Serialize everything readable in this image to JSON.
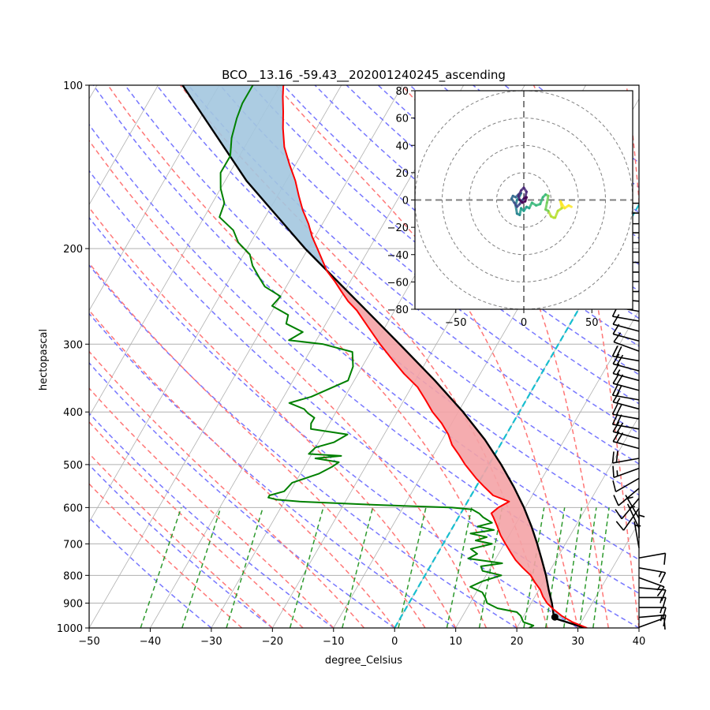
{
  "chart_data": [
    {
      "type": "line",
      "subtype": "skew-t",
      "title": "BCO__13.16_-59.43__202001240245_ascending",
      "xlabel": "degree_Celsius",
      "ylabel": "hectopascal",
      "xlim": [
        -50,
        40
      ],
      "ylim": [
        1000,
        100
      ],
      "yscale": "log",
      "xticks": [
        -50,
        -40,
        -30,
        -20,
        -10,
        0,
        10,
        20,
        30,
        40
      ],
      "xtick_labels": [
        "−50",
        "−40",
        "−30",
        "−20",
        "−10",
        "0",
        "10",
        "20",
        "30",
        "40"
      ],
      "yticks": [
        100,
        200,
        300,
        400,
        500,
        600,
        700,
        800,
        900,
        1000
      ],
      "ytick_labels": [
        "100",
        "200",
        "300",
        "400",
        "500",
        "600",
        "700",
        "800",
        "900",
        "1000"
      ],
      "grid": true,
      "skew_degrees": 30,
      "colors": {
        "temperature": "#ff0000",
        "dewpoint": "#008000",
        "parcel": "#000000",
        "cape": "#f4a3a6",
        "cin": "#a3c6df",
        "dry_adiabat": "#7777ff",
        "moist_adiabat": "#ff7777",
        "mixing_ratio": "#2e9a2e",
        "zero_isotherm": "#17becf",
        "isotherm": "#b0b0b0"
      },
      "series": [
        {
          "name": "temperature",
          "points": [
            [
              1000,
              31.5
            ],
            [
              975,
              28.5
            ],
            [
              950,
              26.2
            ],
            [
              925,
              24.3
            ],
            [
              900,
              22.6
            ],
            [
              875,
              21.3
            ],
            [
              850,
              20.2
            ],
            [
              825,
              18.7
            ],
            [
              800,
              17.3
            ],
            [
              775,
              15.3
            ],
            [
              750,
              13.4
            ],
            [
              725,
              11.8
            ],
            [
              700,
              10.2
            ],
            [
              675,
              8.6
            ],
            [
              650,
              7.2
            ],
            [
              625,
              5.7
            ],
            [
              615,
              5.0
            ],
            [
              600,
              5.6
            ],
            [
              585,
              6.8
            ],
            [
              570,
              3.6
            ],
            [
              550,
              1.4
            ],
            [
              530,
              -0.8
            ],
            [
              500,
              -3.9
            ],
            [
              480,
              -5.8
            ],
            [
              460,
              -7.9
            ],
            [
              440,
              -9.5
            ],
            [
              420,
              -11.6
            ],
            [
              400,
              -14.2
            ],
            [
              380,
              -16.5
            ],
            [
              360,
              -19.0
            ],
            [
              340,
              -22.5
            ],
            [
              320,
              -25.8
            ],
            [
              300,
              -29.2
            ],
            [
              280,
              -32.6
            ],
            [
              260,
              -36.2
            ],
            [
              250,
              -38.5
            ],
            [
              240,
              -40.5
            ],
            [
              230,
              -42.5
            ],
            [
              220,
              -44.8
            ],
            [
              200,
              -48.5
            ],
            [
              190,
              -50.5
            ],
            [
              180,
              -52.3
            ],
            [
              170,
              -54.5
            ],
            [
              160,
              -56.5
            ],
            [
              150,
              -58.5
            ],
            [
              140,
              -61.0
            ],
            [
              130,
              -63.5
            ],
            [
              120,
              -65.5
            ],
            [
              112,
              -67.0
            ],
            [
              105,
              -68.5
            ],
            [
              100,
              -69.5
            ]
          ]
        },
        {
          "name": "dewpoint",
          "points": [
            [
              1000,
              22.0
            ],
            [
              990,
              22.5
            ],
            [
              975,
              20.5
            ],
            [
              950,
              19.5
            ],
            [
              935,
              18.5
            ],
            [
              920,
              15.0
            ],
            [
              900,
              12.8
            ],
            [
              880,
              12.0
            ],
            [
              860,
              11.0
            ],
            [
              840,
              8.5
            ],
            [
              820,
              10.0
            ],
            [
              800,
              12.5
            ],
            [
              785,
              9.0
            ],
            [
              770,
              8.3
            ],
            [
              760,
              11.5
            ],
            [
              745,
              5.5
            ],
            [
              730,
              6.5
            ],
            [
              715,
              5.0
            ],
            [
              700,
              8.0
            ],
            [
              690,
              5.0
            ],
            [
              680,
              6.5
            ],
            [
              670,
              3.5
            ],
            [
              660,
              7.0
            ],
            [
              650,
              4.0
            ],
            [
              640,
              6.0
            ],
            [
              625,
              4.0
            ],
            [
              615,
              3.0
            ],
            [
              605,
              1.5
            ],
            [
              600,
              -2.0
            ],
            [
              593,
              -15.0
            ],
            [
              585,
              -27.5
            ],
            [
              580,
              -31.5
            ],
            [
              575,
              -33.0
            ],
            [
              570,
              -33.0
            ],
            [
              560,
              -31.0
            ],
            [
              540,
              -30.5
            ],
            [
              520,
              -27.0
            ],
            [
              505,
              -25.5
            ],
            [
              495,
              -24.8
            ],
            [
              487,
              -29.0
            ],
            [
              482,
              -25.0
            ],
            [
              478,
              -30.5
            ],
            [
              465,
              -30.0
            ],
            [
              455,
              -27.5
            ],
            [
              440,
              -26.0
            ],
            [
              430,
              -32.5
            ],
            [
              420,
              -33.0
            ],
            [
              410,
              -33.0
            ],
            [
              402,
              -34.5
            ],
            [
              395,
              -35.5
            ],
            [
              385,
              -38.5
            ],
            [
              375,
              -35.5
            ],
            [
              350,
              -31.0
            ],
            [
              330,
              -31.5
            ],
            [
              310,
              -33.0
            ],
            [
              300,
              -38.5
            ],
            [
              295,
              -44.5
            ],
            [
              285,
              -43.0
            ],
            [
              275,
              -46.5
            ],
            [
              265,
              -47.0
            ],
            [
              255,
              -50.5
            ],
            [
              245,
              -50.0
            ],
            [
              235,
              -53.5
            ],
            [
              225,
              -55.5
            ],
            [
              215,
              -57.5
            ],
            [
              205,
              -59.0
            ],
            [
              195,
              -62.0
            ],
            [
              185,
              -64.0
            ],
            [
              175,
              -67.5
            ],
            [
              165,
              -68.0
            ],
            [
              155,
              -70.0
            ],
            [
              145,
              -71.5
            ],
            [
              135,
              -71.5
            ],
            [
              125,
              -73.0
            ],
            [
              115,
              -74.0
            ],
            [
              108,
              -74.5
            ],
            [
              100,
              -74.5
            ]
          ]
        },
        {
          "name": "parcel",
          "points": [
            [
              1000,
              31.2
            ],
            [
              960,
              25.3
            ],
            [
              950,
              24.9
            ],
            [
              900,
              23.4
            ],
            [
              850,
              21.6
            ],
            [
              800,
              19.8
            ],
            [
              750,
              17.7
            ],
            [
              700,
              15.4
            ],
            [
              650,
              12.8
            ],
            [
              600,
              9.8
            ],
            [
              550,
              6.2
            ],
            [
              500,
              2.0
            ],
            [
              450,
              -3.0
            ],
            [
              400,
              -9.2
            ],
            [
              350,
              -16.8
            ],
            [
              300,
              -26.0
            ],
            [
              250,
              -37.0
            ],
            [
              200,
              -50.5
            ],
            [
              150,
              -66.5
            ],
            [
              100,
              -86.0
            ]
          ]
        }
      ],
      "surface_marker": {
        "pressure": 955,
        "temperature": 25.2
      },
      "hodograph": {
        "type": "line",
        "xlim": [
          -80,
          80
        ],
        "ylim": [
          -80,
          80
        ],
        "xticks": [
          -50,
          0,
          50
        ],
        "xtick_labels": [
          "−50",
          "0",
          "50"
        ],
        "yticks": [
          -80,
          -60,
          -40,
          -20,
          0,
          20,
          40,
          60,
          80
        ],
        "ytick_labels": [
          "−80",
          "−60",
          "−40",
          "−20",
          "0",
          "20",
          "40",
          "60",
          "80"
        ],
        "rings": [
          20,
          40,
          60,
          80
        ],
        "colormap": "viridis",
        "u": [
          35,
          33,
          30,
          28,
          27,
          28,
          25,
          23,
          22,
          20,
          18,
          16,
          17,
          18,
          16,
          14,
          12,
          9,
          6,
          4,
          2,
          0,
          -2,
          -3,
          -5,
          -6,
          -5,
          -3,
          -2,
          -4,
          -6,
          -8,
          -9,
          -7,
          -5,
          -3,
          -1,
          1,
          2,
          0,
          -2,
          -4,
          -3,
          -1,
          1,
          2,
          0
        ],
        "v": [
          -5,
          -4,
          -6,
          -3,
          -1,
          -6,
          -8,
          -13,
          -13,
          -12,
          -8,
          -7,
          -2,
          3,
          4,
          2,
          -3,
          -4,
          -2,
          -6,
          -5,
          -8,
          -6,
          -11,
          -10,
          -4,
          0,
          3,
          5,
          4,
          2,
          3,
          1,
          -2,
          -5,
          -3,
          0,
          2,
          6,
          9,
          7,
          3,
          0,
          -2,
          -1,
          2,
          1
        ]
      },
      "wind_barbs": {
        "pressures": [
          165,
          172,
          180,
          187,
          195,
          203,
          212,
          221,
          230,
          240,
          250,
          261,
          272,
          284,
          296,
          309,
          322,
          336,
          350,
          365,
          380,
          395,
          412,
          430,
          448,
          467,
          487,
          508,
          530,
          553,
          577,
          602,
          628,
          655,
          683,
          712,
          743,
          775,
          808,
          843,
          879,
          917,
          956,
          997
        ],
        "speeds_kt": [
          10,
          10,
          10,
          10,
          10,
          10,
          10,
          10,
          10,
          10,
          10,
          10,
          10,
          10,
          10,
          10,
          20,
          20,
          15,
          20,
          20,
          15,
          20,
          20,
          20,
          20,
          20,
          15,
          10,
          10,
          10,
          10,
          5,
          5,
          5,
          5,
          10,
          15,
          15,
          10,
          15,
          15,
          15,
          10
        ],
        "directions_deg": [
          270,
          270,
          270,
          270,
          270,
          270,
          270,
          270,
          270,
          270,
          275,
          280,
          280,
          285,
          285,
          290,
          280,
          285,
          285,
          285,
          280,
          285,
          280,
          280,
          285,
          285,
          260,
          250,
          240,
          230,
          220,
          215,
          330,
          335,
          0,
          350,
          80,
          100,
          110,
          95,
          90,
          90,
          85,
          70
        ]
      }
    }
  ]
}
